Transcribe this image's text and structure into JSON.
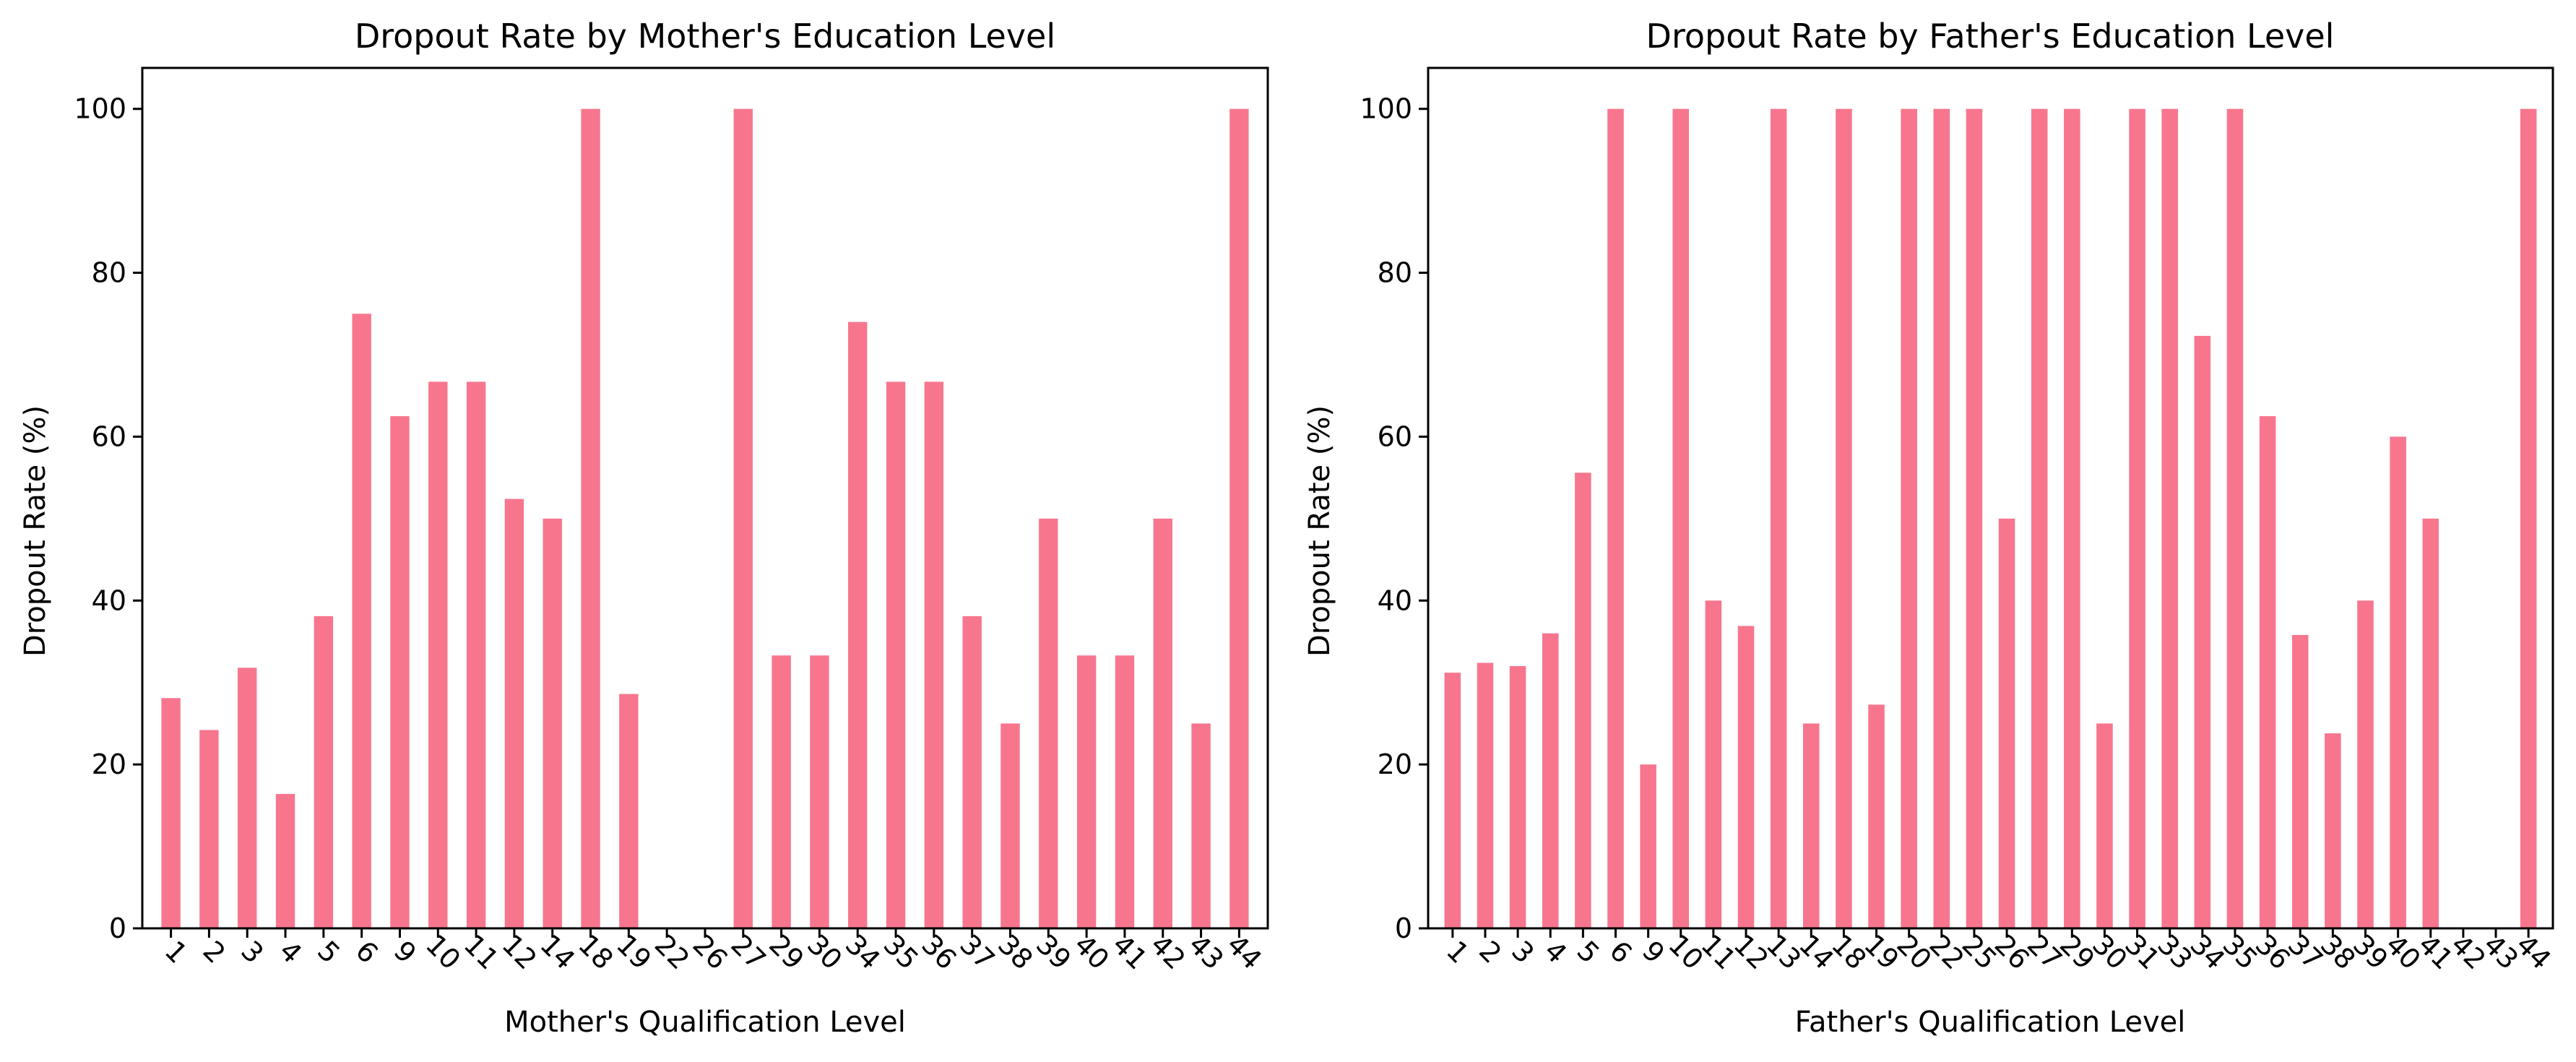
{
  "chart_data": [
    {
      "type": "bar",
      "title": "Dropout Rate by Mother's Education Level",
      "xlabel": "Mother's Qualification Level",
      "ylabel": "Dropout Rate (%)",
      "ylim": [
        0,
        105
      ],
      "yticks": [
        0,
        20,
        40,
        60,
        80,
        100
      ],
      "bar_color": "#f7768e",
      "grid": false,
      "categories": [
        "1",
        "2",
        "3",
        "4",
        "5",
        "6",
        "9",
        "10",
        "11",
        "12",
        "14",
        "18",
        "19",
        "22",
        "26",
        "27",
        "29",
        "30",
        "34",
        "35",
        "36",
        "37",
        "38",
        "39",
        "40",
        "41",
        "42",
        "43",
        "44"
      ],
      "values": [
        28.1,
        24.2,
        31.8,
        16.4,
        38.1,
        75.0,
        62.5,
        66.7,
        66.7,
        52.4,
        50.0,
        100,
        28.6,
        0,
        0,
        100,
        33.3,
        33.3,
        74.0,
        66.7,
        66.7,
        38.1,
        25.0,
        50.0,
        33.3,
        33.3,
        50.0,
        25.0,
        100
      ]
    },
    {
      "type": "bar",
      "title": "Dropout Rate by Father's Education Level",
      "xlabel": "Father's Qualification Level",
      "ylabel": "Dropout Rate (%)",
      "ylim": [
        0,
        105
      ],
      "yticks": [
        0,
        20,
        40,
        60,
        80,
        100
      ],
      "bar_color": "#f7768e",
      "grid": false,
      "categories": [
        "1",
        "2",
        "3",
        "4",
        "5",
        "6",
        "9",
        "10",
        "11",
        "12",
        "13",
        "14",
        "18",
        "19",
        "20",
        "22",
        "25",
        "26",
        "27",
        "29",
        "30",
        "31",
        "33",
        "34",
        "35",
        "36",
        "37",
        "38",
        "39",
        "40",
        "41",
        "42",
        "43",
        "44"
      ],
      "values": [
        31.2,
        32.4,
        32.0,
        36.0,
        55.6,
        100,
        20.0,
        100,
        40.0,
        36.9,
        100,
        25.0,
        100,
        27.3,
        100,
        100,
        100,
        50.0,
        100,
        100,
        25.0,
        100,
        100,
        72.3,
        100,
        62.5,
        35.8,
        23.8,
        40.0,
        60.0,
        50.0,
        0,
        0,
        100
      ]
    }
  ]
}
